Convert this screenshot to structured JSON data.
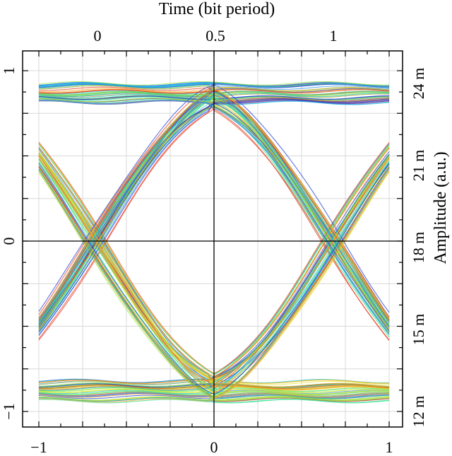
{
  "chart_data": {
    "type": "line",
    "subtype": "eye-diagram",
    "title": "",
    "grid": true,
    "axes": {
      "bottom": {
        "label": "",
        "range": [
          -1,
          1
        ],
        "ticks": [
          {
            "value": -1,
            "label": "−1"
          },
          {
            "value": 0,
            "label": "0"
          },
          {
            "value": 1,
            "label": "1"
          }
        ]
      },
      "left": {
        "label": "",
        "range": [
          -1.08,
          1.04
        ],
        "ticks": [
          {
            "value": -1,
            "label": "−1"
          },
          {
            "value": 0,
            "label": "0"
          },
          {
            "value": 1,
            "label": "1"
          }
        ]
      },
      "top": {
        "label": "Time (bit period)",
        "ticks": [
          {
            "value": 0,
            "label": "0"
          },
          {
            "value": 0.5,
            "label": "0.5"
          },
          {
            "value": 1,
            "label": "1"
          }
        ]
      },
      "right": {
        "label": "Amplitude  (a.u.)",
        "ticks": [
          {
            "value": 12,
            "label": "12 m"
          },
          {
            "value": 15,
            "label": "15 m"
          },
          {
            "value": 18,
            "label": "18 m"
          },
          {
            "value": 21,
            "label": "21 m"
          },
          {
            "value": 24,
            "label": "24 m"
          }
        ]
      }
    },
    "eye": {
      "high_level": 0.87,
      "low_level": -0.88,
      "level_spread": 0.06,
      "crossing_level": 0.0,
      "crossing_times": [
        -0.68,
        0.68
      ],
      "trace_colors": [
        "#1a3bd6",
        "#2f8ff0",
        "#14c8d8",
        "#2ee08a",
        "#8ee83a",
        "#e6e62a",
        "#f5a623",
        "#e8361a"
      ]
    }
  }
}
